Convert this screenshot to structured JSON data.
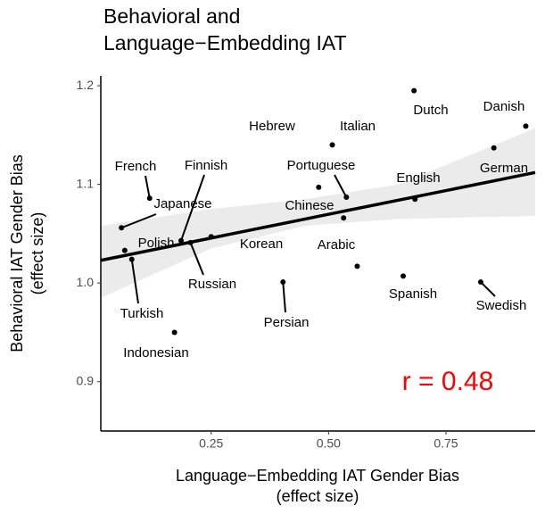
{
  "chart_data": {
    "type": "scatter",
    "title": [
      "Behavioral and",
      "Language−Embedding IAT"
    ],
    "x_label": [
      "Language−Embedding IAT Gender Bias",
      "(effect size)"
    ],
    "y_label": [
      "Behavioral IAT Gender Bias",
      "(effect size)"
    ],
    "annotation": "r = 0.48",
    "annotation_color": "#ff0000",
    "labels": [
      "Dutch",
      "Danish",
      "German",
      "Italian",
      "Hebrew",
      "Portuguese",
      "English",
      "Chinese",
      "French",
      "Japanese",
      "Polish",
      "Finnish",
      "Korean",
      "Russian",
      "Turkish",
      "Arabic",
      "Spanish",
      "Swedish",
      "Persian",
      "Indonesian"
    ],
    "x": [
      0.682,
      0.92,
      0.852,
      0.508,
      0.479,
      0.538,
      0.684,
      0.532,
      0.119,
      0.059,
      0.066,
      0.186,
      0.25,
      0.206,
      0.081,
      0.561,
      0.659,
      0.824,
      0.403,
      0.172
    ],
    "values": [
      1.195,
      1.159,
      1.137,
      1.14,
      1.097,
      1.087,
      1.085,
      1.066,
      1.086,
      1.056,
      1.033,
      1.043,
      1.047,
      1.041,
      1.024,
      1.017,
      1.007,
      1.001,
      1.001,
      0.95
    ],
    "color": "#000000",
    "fit": {
      "x": [
        0.015,
        0.94
      ],
      "y": [
        1.023,
        1.112
      ],
      "color": "#000000"
    },
    "band": {
      "x": [
        0.015,
        0.25,
        0.45,
        0.65,
        0.94
      ],
      "lower": [
        0.985,
        1.035,
        1.058,
        1.065,
        1.068
      ],
      "upper": [
        1.058,
        1.075,
        1.085,
        1.1,
        1.157
      ],
      "color": "#ebebeb"
    },
    "xlim": [
      0.015,
      0.94
    ],
    "ylim": [
      0.85,
      1.21
    ],
    "xticks": [
      {
        "value": 0.25,
        "label": "0.25"
      },
      {
        "value": 0.5,
        "label": "0.50"
      },
      {
        "value": 0.75,
        "label": "0.75"
      }
    ],
    "yticks": [
      0.9,
      {
        "value": 1.0,
        "label": "1.0"
      },
      1.1,
      1.2
    ],
    "grid": false
  }
}
